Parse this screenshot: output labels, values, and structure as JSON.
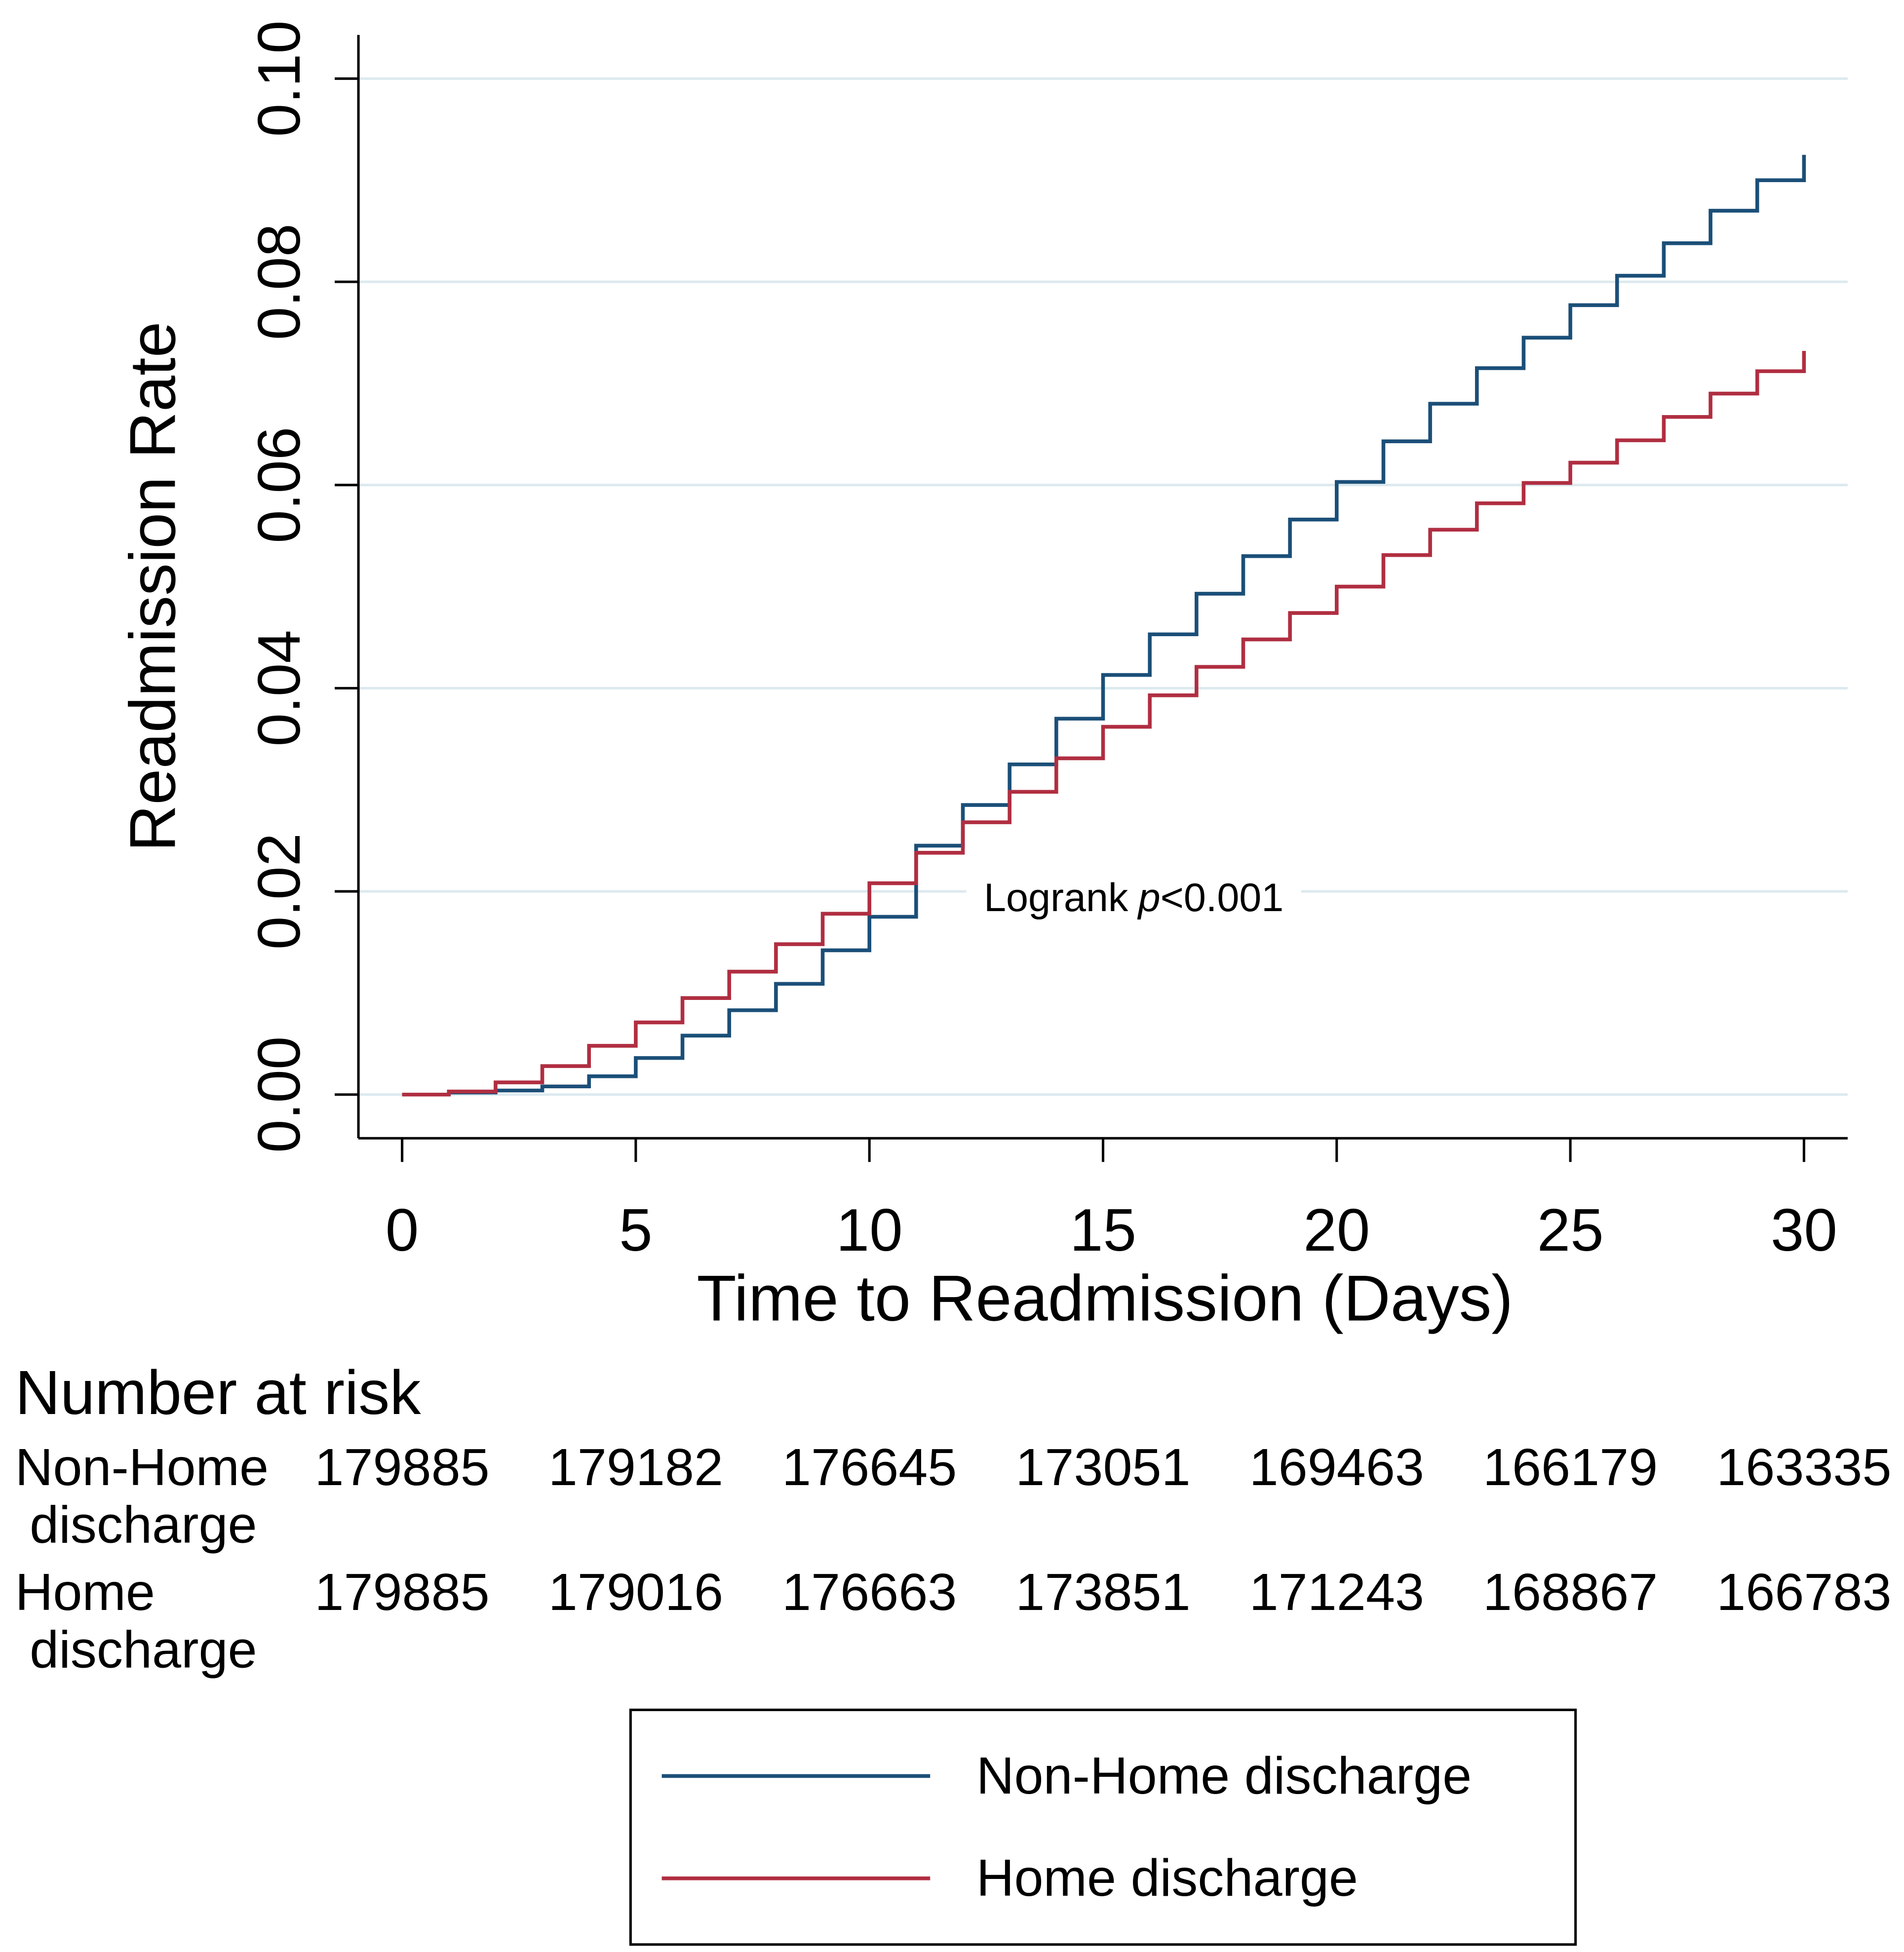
{
  "chart_data": {
    "type": "step",
    "x_label": "Time to Readmission (Days)",
    "y_label": "Readmission Rate",
    "annotation": {
      "text": "Logrank",
      "italic": "p",
      "suffix": "<0.001"
    },
    "x": [
      0,
      1,
      2,
      3,
      4,
      5,
      6,
      7,
      8,
      9,
      10,
      11,
      12,
      13,
      14,
      15,
      16,
      17,
      18,
      19,
      20,
      21,
      22,
      23,
      24,
      25,
      26,
      27,
      28,
      29,
      30
    ],
    "series": [
      {
        "name": "Non-Home discharge",
        "color": "#1b4f78",
        "values": [
          0,
          0.0002,
          0.0004,
          0.0008,
          0.0018,
          0.0036,
          0.0058,
          0.0083,
          0.0109,
          0.0142,
          0.0175,
          0.0245,
          0.0285,
          0.0325,
          0.037,
          0.0413,
          0.0453,
          0.0493,
          0.053,
          0.0566,
          0.0603,
          0.0643,
          0.068,
          0.0715,
          0.0745,
          0.0777,
          0.0806,
          0.0838,
          0.087,
          0.09,
          0.0925
        ]
      },
      {
        "name": "Home discharge",
        "color": "#b02e41",
        "values": [
          0,
          0.0003,
          0.0012,
          0.0028,
          0.0048,
          0.0071,
          0.0095,
          0.0121,
          0.0148,
          0.0178,
          0.0208,
          0.0238,
          0.0268,
          0.0298,
          0.0331,
          0.0362,
          0.0393,
          0.0421,
          0.0448,
          0.0474,
          0.05,
          0.0531,
          0.0556,
          0.0582,
          0.0602,
          0.0622,
          0.0644,
          0.0667,
          0.069,
          0.0712,
          0.0732
        ]
      }
    ],
    "xlim": [
      0,
      30
    ],
    "xticks": [
      0,
      5,
      10,
      15,
      20,
      25,
      30
    ],
    "ylim": [
      0,
      0.1
    ],
    "yticks": [
      {
        "value": 0,
        "label": "0.00"
      },
      {
        "value": 0.02,
        "label": "0.02"
      },
      {
        "value": 0.04,
        "label": "0.04"
      },
      {
        "value": 0.06,
        "label": "0.06"
      },
      {
        "value": 0.08,
        "label": "0.08"
      },
      {
        "value": 0.1,
        "label": "0.10"
      }
    ],
    "grid": true,
    "legend": "bottom",
    "risk_table": {
      "title": "Number at risk",
      "rows": [
        {
          "label": "Non-Home discharge",
          "values": [
            179885,
            179182,
            176645,
            173051,
            169463,
            166179,
            163335
          ]
        },
        {
          "label": "Home discharge",
          "values": [
            179885,
            179016,
            176663,
            173851,
            171243,
            168867,
            166783
          ]
        }
      ]
    }
  }
}
